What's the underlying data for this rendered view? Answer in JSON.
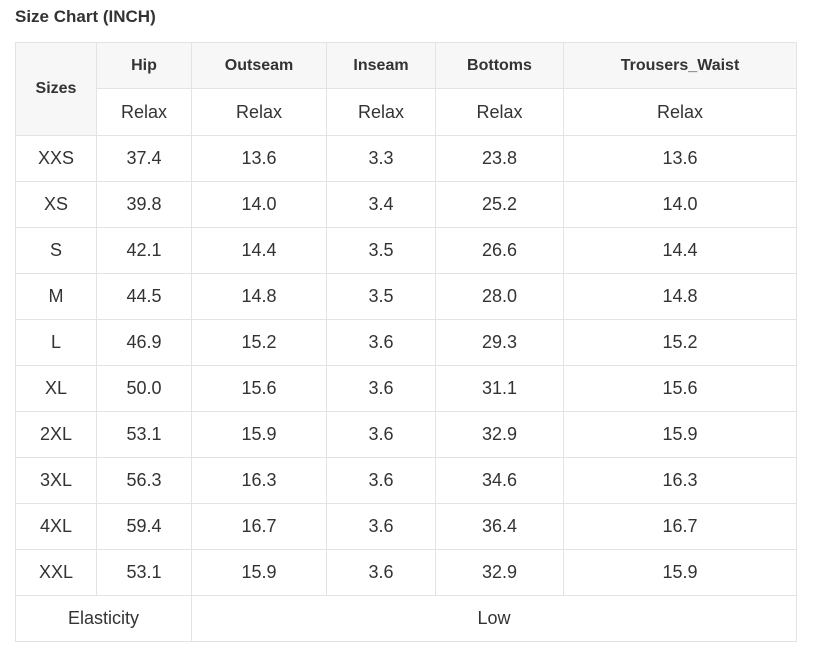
{
  "title": "Size Chart (INCH)",
  "table": {
    "sizes_header": "Sizes",
    "columns": [
      {
        "name": "Hip",
        "sub": "Relax"
      },
      {
        "name": "Outseam",
        "sub": "Relax"
      },
      {
        "name": "Inseam",
        "sub": "Relax"
      },
      {
        "name": "Bottoms",
        "sub": "Relax"
      },
      {
        "name": "Trousers_Waist",
        "sub": "Relax"
      }
    ],
    "rows": [
      {
        "size": "XXS",
        "values": [
          "37.4",
          "13.6",
          "3.3",
          "23.8",
          "13.6"
        ]
      },
      {
        "size": "XS",
        "values": [
          "39.8",
          "14.0",
          "3.4",
          "25.2",
          "14.0"
        ]
      },
      {
        "size": "S",
        "values": [
          "42.1",
          "14.4",
          "3.5",
          "26.6",
          "14.4"
        ]
      },
      {
        "size": "M",
        "values": [
          "44.5",
          "14.8",
          "3.5",
          "28.0",
          "14.8"
        ]
      },
      {
        "size": "L",
        "values": [
          "46.9",
          "15.2",
          "3.6",
          "29.3",
          "15.2"
        ]
      },
      {
        "size": "XL",
        "values": [
          "50.0",
          "15.6",
          "3.6",
          "31.1",
          "15.6"
        ]
      },
      {
        "size": "2XL",
        "values": [
          "53.1",
          "15.9",
          "3.6",
          "32.9",
          "15.9"
        ]
      },
      {
        "size": "3XL",
        "values": [
          "56.3",
          "16.3",
          "3.6",
          "34.6",
          "16.3"
        ]
      },
      {
        "size": "4XL",
        "values": [
          "59.4",
          "16.7",
          "3.6",
          "36.4",
          "16.7"
        ]
      },
      {
        "size": "XXL",
        "values": [
          "53.1",
          "15.9",
          "3.6",
          "32.9",
          "15.9"
        ]
      }
    ],
    "footer": {
      "label": "Elasticity",
      "value": "Low"
    }
  }
}
